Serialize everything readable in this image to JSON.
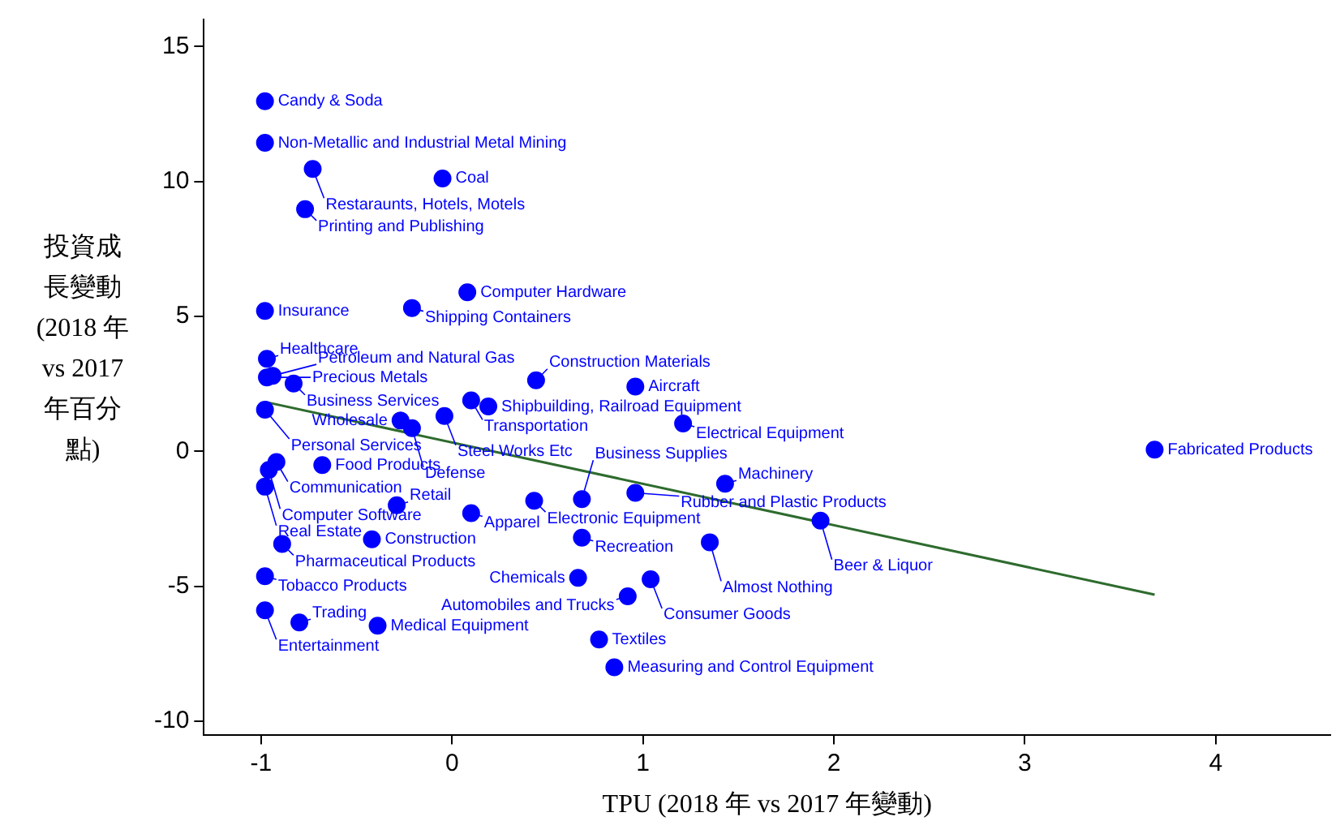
{
  "chart_data": {
    "type": "scatter",
    "xlabel": "TPU (2018 年 vs 2017 年變動)",
    "ylabel": "投資成長變動(2018 年 vs 2017 年百分點)",
    "xlim": [
      -1.3,
      4.6
    ],
    "xticks": [
      -1,
      0,
      1,
      2,
      3,
      4
    ],
    "ylim": [
      -10.5,
      16
    ],
    "yticks": [
      -10,
      -5,
      0,
      5,
      10,
      15
    ],
    "grid": false,
    "legend": false,
    "marker": "circle",
    "series": [
      {
        "color": "#0000ff",
        "x": [
          -0.98,
          -0.98,
          -0.73,
          -0.05,
          -0.77,
          0.08,
          -0.21,
          -0.98,
          -0.97,
          -0.97,
          -0.94,
          -0.83,
          0.44,
          0.96,
          0.1,
          0.19,
          -0.04,
          -0.98,
          -0.27,
          -0.21,
          1.21,
          3.68,
          -0.92,
          -0.96,
          -0.68,
          -0.98,
          -0.29,
          0.1,
          0.43,
          0.68,
          0.96,
          1.43,
          1.93,
          -0.89,
          -0.42,
          0.68,
          1.35,
          -0.98,
          0.66,
          1.04,
          0.92,
          -0.98,
          -0.8,
          -0.39,
          0.77,
          0.85
        ],
        "values": [
          12.97,
          11.43,
          10.46,
          10.11,
          8.97,
          5.89,
          5.31,
          5.2,
          3.43,
          2.74,
          2.8,
          2.51,
          2.63,
          2.4,
          1.89,
          1.66,
          1.31,
          1.54,
          1.14,
          0.86,
          1.03,
          0.06,
          -0.4,
          -0.69,
          -0.51,
          -1.31,
          -2.0,
          -2.29,
          -1.83,
          -1.77,
          -1.54,
          -1.2,
          -2.57,
          -3.43,
          -3.26,
          -3.2,
          -3.37,
          -4.63,
          -4.69,
          -4.74,
          -5.37,
          -5.89,
          -6.34,
          -6.46,
          -6.97,
          -8.0
        ]
      },
      {
        "type": "line",
        "color": "#2e6b2e",
        "marker": "none",
        "line_style": "solid",
        "x": [
          -0.98,
          3.68
        ],
        "values": [
          1.83,
          -5.31
        ]
      }
    ],
    "annotations": [
      {
        "text": "Candy & Soda",
        "x": -0.98,
        "y": 12.97
      },
      {
        "text": "Non-Metallic and Industrial Metal Mining",
        "x": -0.98,
        "y": 11.43
      },
      {
        "text": "Restaraunts, Hotels, Motels",
        "x": -0.73,
        "y": 10.46
      },
      {
        "text": "Coal",
        "x": -0.05,
        "y": 10.11
      },
      {
        "text": "Printing and Publishing",
        "x": -0.77,
        "y": 8.97
      },
      {
        "text": "Computer Hardware",
        "x": 0.08,
        "y": 5.89
      },
      {
        "text": "Shipping Containers",
        "x": -0.21,
        "y": 5.31
      },
      {
        "text": "Insurance",
        "x": -0.98,
        "y": 5.2
      },
      {
        "text": "Healthcare",
        "x": -0.97,
        "y": 3.43
      },
      {
        "text": "Precious Metals",
        "x": -0.97,
        "y": 2.74
      },
      {
        "text": "Petroleum and Natural Gas",
        "x": -0.94,
        "y": 2.8
      },
      {
        "text": "Business Services",
        "x": -0.83,
        "y": 2.51
      },
      {
        "text": "Construction Materials",
        "x": 0.44,
        "y": 2.63
      },
      {
        "text": "Aircraft",
        "x": 0.96,
        "y": 2.4
      },
      {
        "text": "Transportation",
        "x": 0.1,
        "y": 1.89
      },
      {
        "text": "Shipbuilding, Railroad Equipment",
        "x": 0.19,
        "y": 1.66
      },
      {
        "text": "Steel Works Etc",
        "x": -0.04,
        "y": 1.31
      },
      {
        "text": "Personal Services",
        "x": -0.98,
        "y": 1.54
      },
      {
        "text": "Wholesale",
        "x": -0.27,
        "y": 1.14
      },
      {
        "text": "Defense",
        "x": -0.21,
        "y": 0.86
      },
      {
        "text": "Electrical Equipment",
        "x": 1.21,
        "y": 1.03
      },
      {
        "text": "Fabricated Products",
        "x": 3.68,
        "y": 0.06
      },
      {
        "text": "Communication",
        "x": -0.92,
        "y": -0.4
      },
      {
        "text": "Computer Software",
        "x": -0.96,
        "y": -0.69
      },
      {
        "text": "Food Products",
        "x": -0.68,
        "y": -0.51
      },
      {
        "text": "Real Estate",
        "x": -0.98,
        "y": -1.31
      },
      {
        "text": "Retail",
        "x": -0.29,
        "y": -2.0
      },
      {
        "text": "Apparel",
        "x": 0.1,
        "y": -2.29
      },
      {
        "text": "Electronic Equipment",
        "x": 0.43,
        "y": -1.83
      },
      {
        "text": "Business Supplies",
        "x": 0.68,
        "y": -1.77
      },
      {
        "text": "Rubber and Plastic Products",
        "x": 0.96,
        "y": -1.54
      },
      {
        "text": "Machinery",
        "x": 1.43,
        "y": -1.2
      },
      {
        "text": "Beer & Liquor",
        "x": 1.93,
        "y": -2.57
      },
      {
        "text": "Pharmaceutical Products",
        "x": -0.89,
        "y": -3.43
      },
      {
        "text": "Construction",
        "x": -0.42,
        "y": -3.26
      },
      {
        "text": "Recreation",
        "x": 0.68,
        "y": -3.2
      },
      {
        "text": "Almost Nothing",
        "x": 1.35,
        "y": -3.37
      },
      {
        "text": "Tobacco Products",
        "x": -0.98,
        "y": -4.63
      },
      {
        "text": "Chemicals",
        "x": 0.66,
        "y": -4.69
      },
      {
        "text": "Consumer Goods",
        "x": 1.04,
        "y": -4.74
      },
      {
        "text": "Automobiles and Trucks",
        "x": 0.92,
        "y": -5.37
      },
      {
        "text": "Entertainment",
        "x": -0.98,
        "y": -5.89
      },
      {
        "text": "Trading",
        "x": -0.8,
        "y": -6.34
      },
      {
        "text": "Medical Equipment",
        "x": -0.39,
        "y": -6.46
      },
      {
        "text": "Textiles",
        "x": 0.77,
        "y": -6.97
      },
      {
        "text": "Measuring and Control Equipment",
        "x": 0.85,
        "y": -8.0
      }
    ]
  }
}
